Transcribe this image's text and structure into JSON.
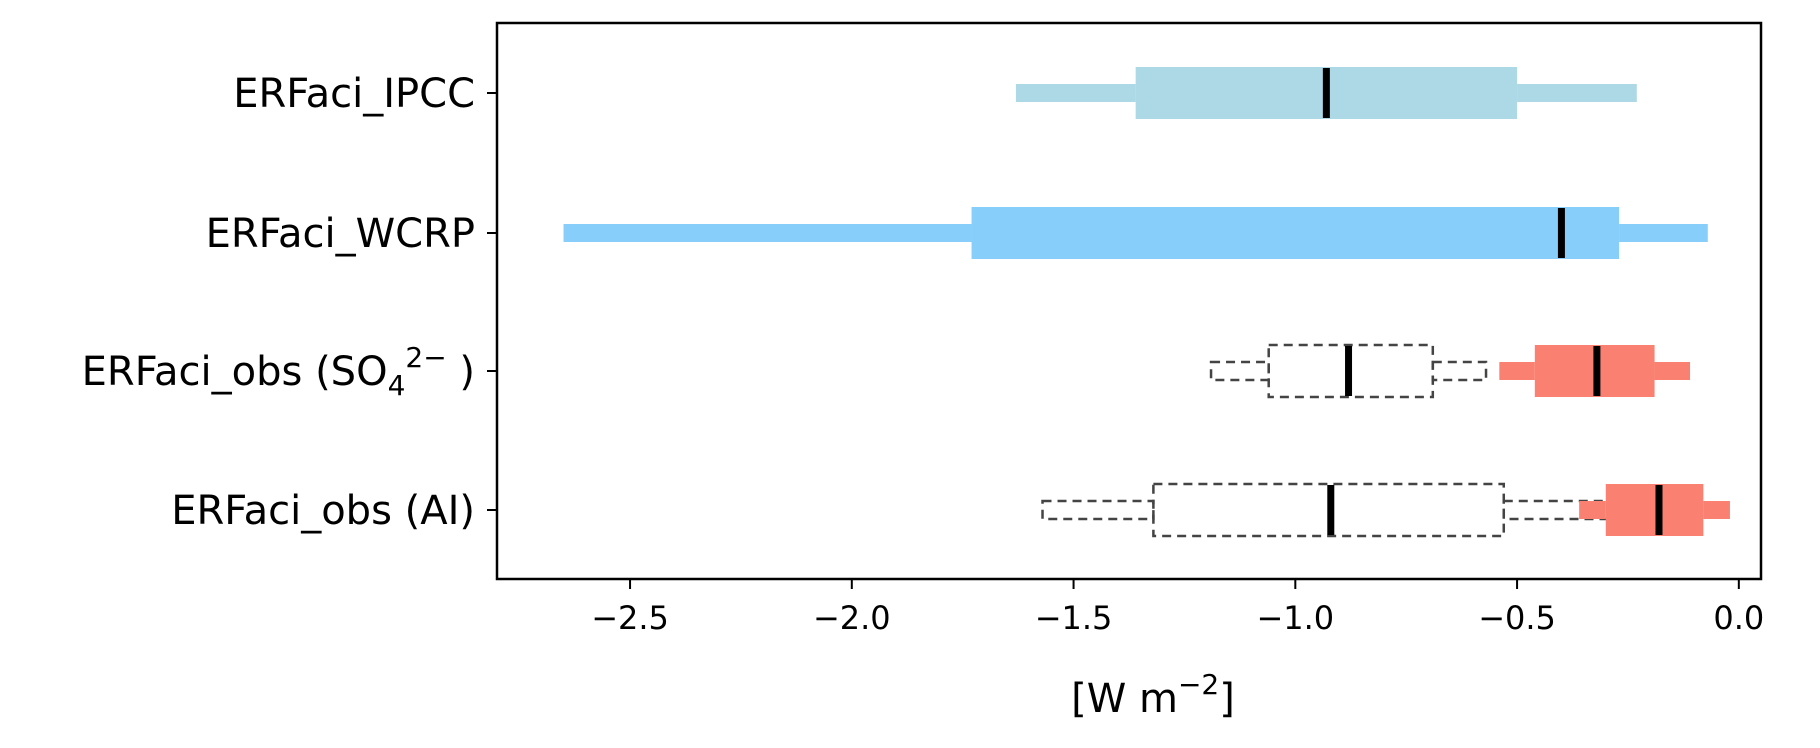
{
  "chart_data": {
    "type": "box",
    "orientation": "horizontal",
    "xlabel": "[W m",
    "xlabel_sup": "−2",
    "xlabel_end": "]",
    "xlim": [
      -2.8,
      0.05
    ],
    "xticks": [
      {
        "value": -2.5,
        "label": "−2.5"
      },
      {
        "value": -2.0,
        "label": "−2.0"
      },
      {
        "value": -1.5,
        "label": "−1.5"
      },
      {
        "value": -1.0,
        "label": "−1.0"
      },
      {
        "value": -0.5,
        "label": "−0.5"
      },
      {
        "value": 0.0,
        "label": "0.0"
      }
    ],
    "categories": [
      {
        "label": "ERFaci_IPCC"
      },
      {
        "label": "ERFaci_WCRP"
      },
      {
        "label": "ERFaci_obs (SO",
        "sub": "4",
        "sup": "2−",
        "end": " )"
      },
      {
        "label": "ERFaci_obs (AI)"
      }
    ],
    "boxes": [
      {
        "category": 0,
        "style": "filled",
        "color": "#add8e6",
        "whisker_low": -1.63,
        "q1": -1.36,
        "median": -0.93,
        "q3": -0.5,
        "whisker_high": -0.23
      },
      {
        "category": 1,
        "style": "filled",
        "color": "#87cefa",
        "whisker_low": -2.65,
        "q1": -1.73,
        "median": -0.4,
        "q3": -0.27,
        "whisker_high": -0.07
      },
      {
        "category": 2,
        "style": "dashed",
        "color": "#444444",
        "whisker_low": -1.19,
        "q1": -1.06,
        "median": -0.88,
        "q3": -0.69,
        "whisker_high": -0.57
      },
      {
        "category": 2,
        "style": "filled",
        "color": "#fa8072",
        "whisker_low": -0.54,
        "q1": -0.46,
        "median": -0.32,
        "q3": -0.19,
        "whisker_high": -0.11
      },
      {
        "category": 3,
        "style": "dashed",
        "color": "#444444",
        "whisker_low": -1.57,
        "q1": -1.32,
        "median": -0.92,
        "q3": -0.53,
        "whisker_high": -0.28
      },
      {
        "category": 3,
        "style": "filled",
        "color": "#fa8072",
        "whisker_low": -0.36,
        "q1": -0.3,
        "median": -0.18,
        "q3": -0.08,
        "whisker_high": -0.02
      }
    ],
    "grid": false,
    "legend": null
  }
}
